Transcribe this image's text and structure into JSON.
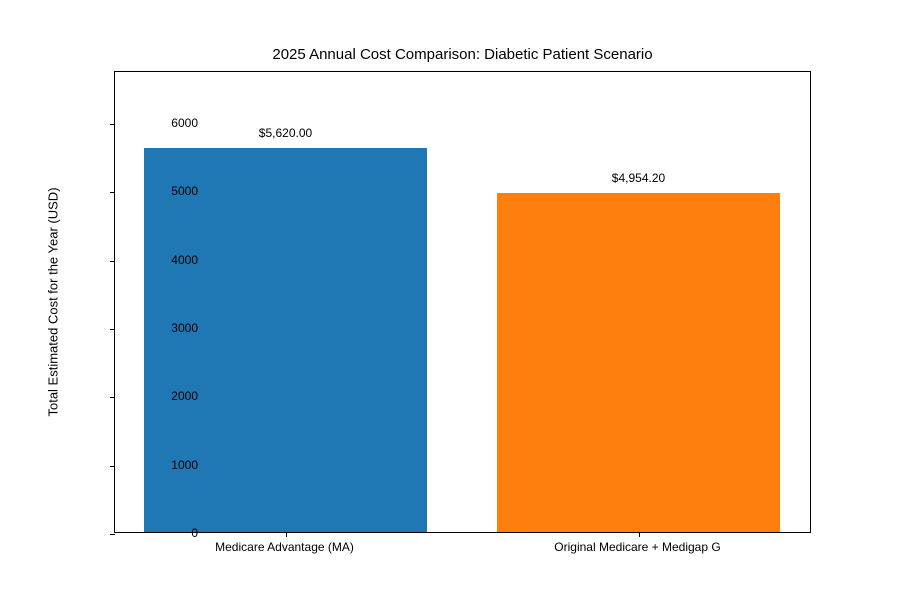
{
  "figure": {
    "title": "2025 Annual Cost Comparison: Diabetic Patient Scenario",
    "ylabel": "Total Estimated Cost for the Year (USD)"
  },
  "chart_data": {
    "type": "bar",
    "title": "2025 Annual Cost Comparison: Diabetic Patient Scenario",
    "xlabel": "",
    "ylabel": "Total Estimated Cost for the Year (USD)",
    "categories": [
      "Medicare Advantage (MA)",
      "Original Medicare + Medigap G"
    ],
    "values": [
      5620.0,
      4954.2
    ],
    "value_labels": [
      "$5,620.00",
      "$4,954.20"
    ],
    "bar_colors": [
      "#1f77b4",
      "#ff7f0e"
    ],
    "yticks": [
      0,
      1000,
      2000,
      3000,
      4000,
      5000,
      6000
    ],
    "ylim": [
      0,
      6760
    ],
    "grid": false,
    "legend_position": "none"
  }
}
